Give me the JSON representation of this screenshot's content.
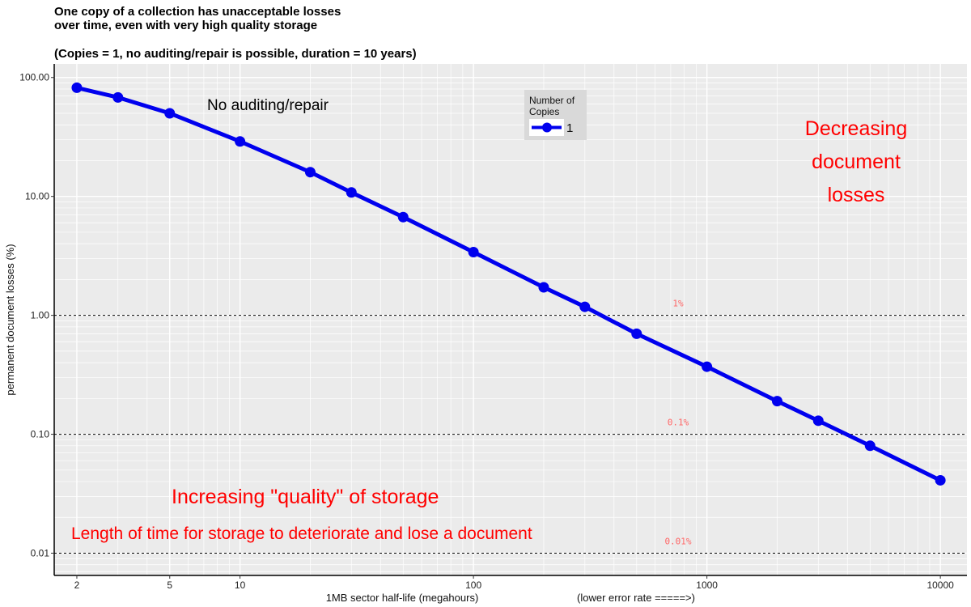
{
  "title_lines": [
    "One copy of a collection has unacceptable losses",
    "over time, even with very high quality storage",
    "(Copies = 1, no auditing/repair is possible, duration = 10 years)"
  ],
  "chart_data": {
    "type": "line",
    "x_scale": "log",
    "y_scale": "log",
    "x": [
      2,
      3,
      5,
      10,
      20,
      30,
      50,
      100,
      200,
      300,
      500,
      1000,
      2000,
      3000,
      5000,
      10000
    ],
    "series": [
      {
        "name": "1",
        "color": "#0000ee",
        "values": [
          82,
          68,
          50,
          29,
          16,
          10.8,
          6.7,
          3.4,
          1.72,
          1.18,
          0.7,
          0.37,
          0.19,
          0.13,
          0.08,
          0.041
        ]
      }
    ],
    "xlabel": "1MB sector half-life (megahours)",
    "xlabel_note": "(lower error rate =====>)",
    "ylabel": "permanent document losses (%)",
    "xlim": [
      1.6,
      13000
    ],
    "ylim": [
      0.0065,
      130
    ],
    "x_ticks": [
      2,
      5,
      10,
      100,
      1000,
      10000
    ],
    "x_tick_labels": [
      "2",
      "5",
      "10",
      "100",
      "1000",
      "10000"
    ],
    "y_ticks": [
      0.01,
      0.1,
      1,
      10,
      100
    ],
    "y_tick_labels": [
      "0.01",
      "0.10",
      "1.00",
      "10.00",
      "100.00"
    ],
    "grid": true,
    "reference_lines": [
      {
        "y": 1,
        "label": "1%"
      },
      {
        "y": 0.1,
        "label": "0.1%"
      },
      {
        "y": 0.01,
        "label": "0.01%"
      }
    ],
    "legend": {
      "title_lines": [
        "Number of",
        "Copies"
      ],
      "position": "top-center",
      "entries": [
        "1"
      ]
    },
    "annotations": {
      "no_repair": "No auditing/repair",
      "decreasing": [
        "Decreasing",
        "document",
        "losses"
      ],
      "quality": "Increasing \"quality\" of storage",
      "time": "Length of time for storage to deteriorate and lose a document"
    }
  }
}
